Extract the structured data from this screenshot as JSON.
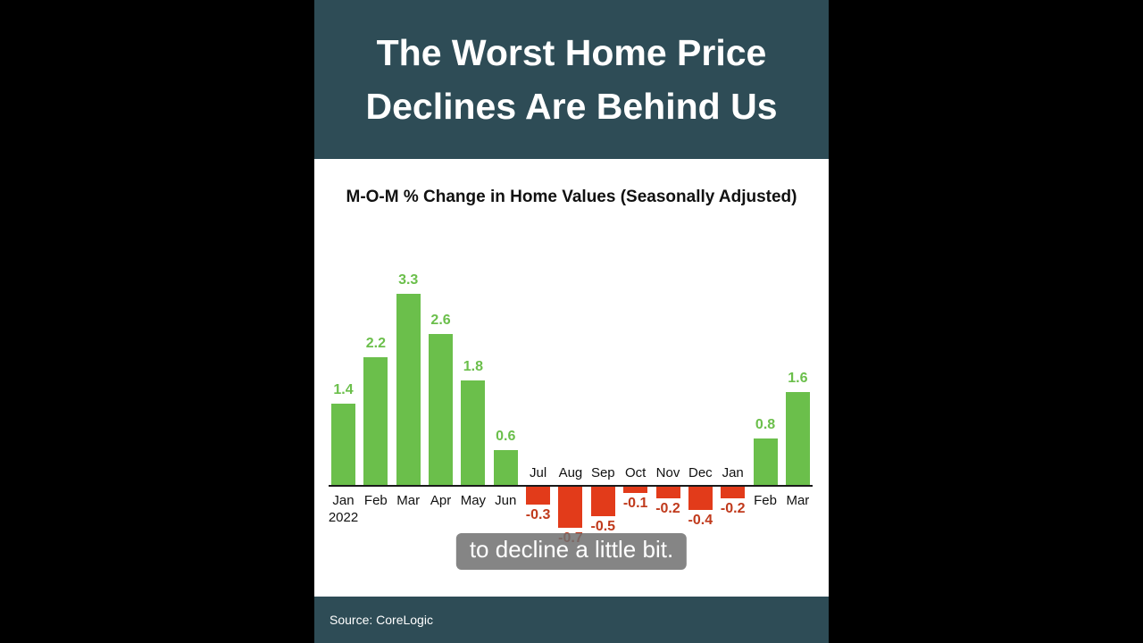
{
  "header": {
    "title_line1": "The Worst Home Price",
    "title_line2": "Declines Are Behind Us"
  },
  "colors": {
    "banner_background": "#2e4c56",
    "footer_background": "#2e4c56",
    "bar_positive": "#6bbf4b",
    "bar_negative": "#e23b1a",
    "label_positive": "#6bbf4b",
    "label_negative": "#c03a1c"
  },
  "chart_data": {
    "type": "bar",
    "title": "M-O-M % Change in Home Values (Seasonally Adjusted)",
    "categories": [
      "Jan",
      "Feb",
      "Mar",
      "Apr",
      "May",
      "Jun",
      "Jul",
      "Aug",
      "Sep",
      "Oct",
      "Nov",
      "Dec",
      "Jan",
      "Feb",
      "Mar"
    ],
    "sublabels": [
      "2022",
      "",
      "",
      "",
      "",
      "",
      "",
      "",
      "",
      "",
      "",
      "",
      "",
      "",
      ""
    ],
    "values": [
      1.4,
      2.2,
      3.3,
      2.6,
      1.8,
      0.6,
      -0.3,
      -0.7,
      -0.5,
      -0.1,
      -0.2,
      -0.4,
      -0.2,
      0.8,
      1.6
    ],
    "xlabel": "",
    "ylabel": "",
    "ylim": [
      -1,
      3.6
    ],
    "grid": false,
    "legend": false
  },
  "caption": {
    "text": "to decline a little bit."
  },
  "footer": {
    "source": "Source: CoreLogic"
  }
}
